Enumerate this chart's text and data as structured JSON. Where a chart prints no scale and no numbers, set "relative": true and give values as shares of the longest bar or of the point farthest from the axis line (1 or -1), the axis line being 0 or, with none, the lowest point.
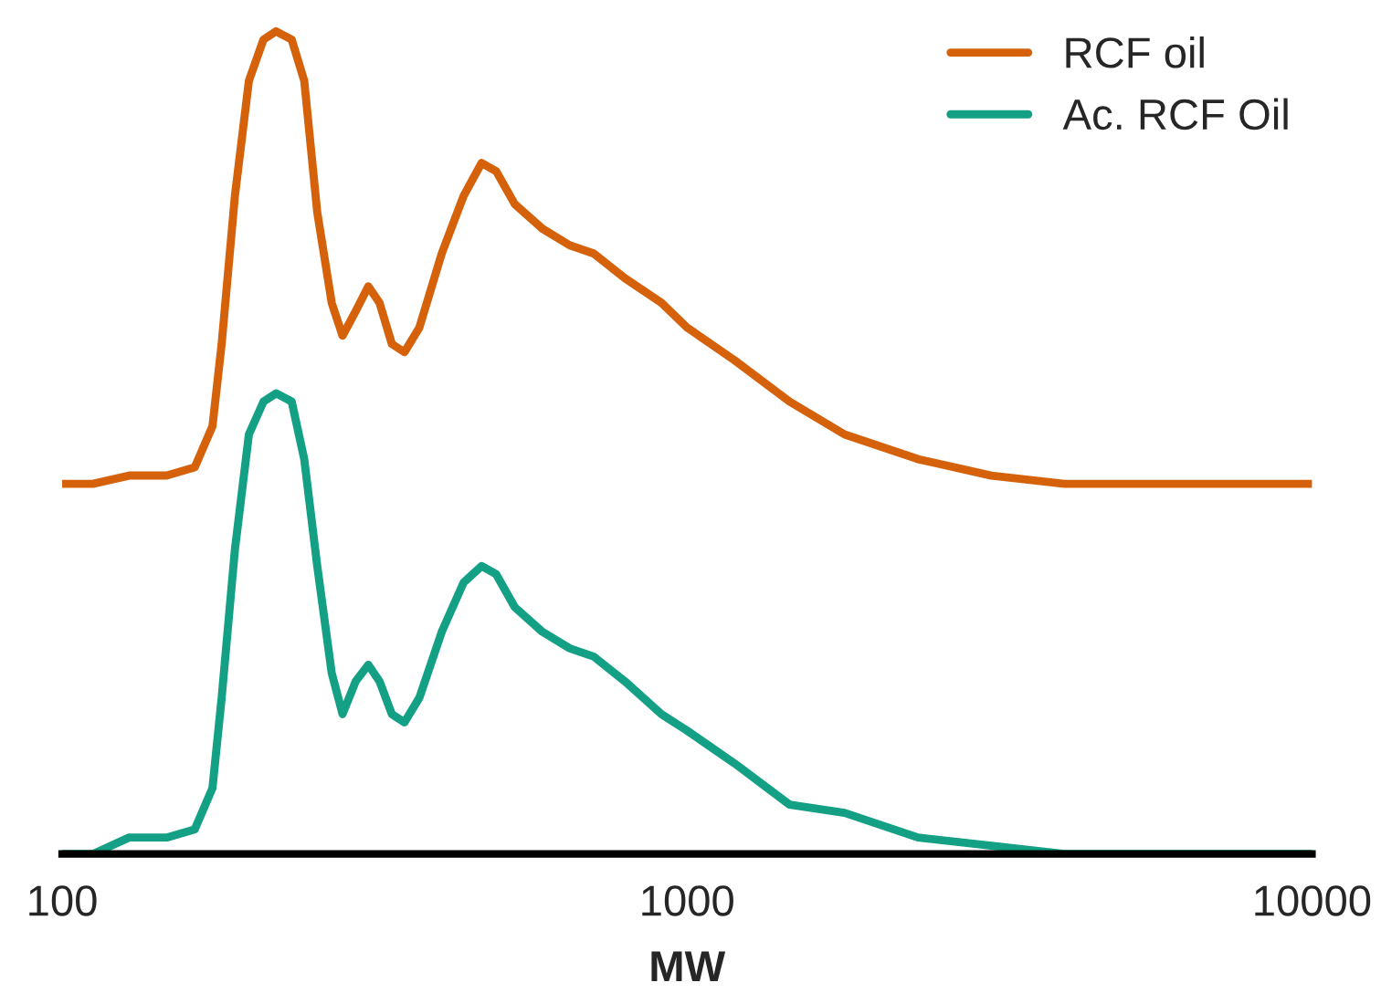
{
  "chart_data": {
    "type": "line",
    "relative": true,
    "xlabel": "MW",
    "log": "x",
    "xlim": [
      100,
      10000
    ],
    "xticks": [
      100,
      1000,
      10000
    ],
    "legend": "top right",
    "grid": false,
    "marker": "none",
    "line_style": "solid",
    "x": [
      100,
      112,
      128,
      147,
      163,
      174,
      180,
      189,
      199,
      210,
      220,
      233,
      244,
      256,
      270,
      281,
      295,
      309,
      322,
      337,
      353,
      373,
      405,
      439,
      469,
      495,
      530,
      587,
      649,
      709,
      795,
      910,
      1000,
      1192,
      1459,
      1787,
      2342,
      3068,
      4018,
      6447,
      10000
    ],
    "series": [
      {
        "name": "RCF oil",
        "color": "#d5620b",
        "values": [
          0.45,
          0.45,
          0.46,
          0.46,
          0.47,
          0.52,
          0.62,
          0.8,
          0.94,
          0.99,
          1.0,
          0.99,
          0.94,
          0.78,
          0.67,
          0.63,
          0.66,
          0.69,
          0.67,
          0.62,
          0.61,
          0.64,
          0.73,
          0.8,
          0.84,
          0.83,
          0.79,
          0.76,
          0.74,
          0.73,
          0.7,
          0.67,
          0.64,
          0.6,
          0.55,
          0.51,
          0.48,
          0.46,
          0.45,
          0.45,
          0.45
        ]
      },
      {
        "name": "Ac. RCF Oil",
        "color": "#13a085",
        "values": [
          0.0,
          0.0,
          0.02,
          0.02,
          0.03,
          0.08,
          0.19,
          0.37,
          0.51,
          0.55,
          0.56,
          0.55,
          0.48,
          0.35,
          0.22,
          0.17,
          0.21,
          0.23,
          0.21,
          0.17,
          0.16,
          0.19,
          0.27,
          0.33,
          0.35,
          0.34,
          0.3,
          0.27,
          0.25,
          0.24,
          0.21,
          0.17,
          0.15,
          0.11,
          0.06,
          0.05,
          0.02,
          0.01,
          0.0,
          0.0,
          0.0
        ]
      }
    ]
  }
}
